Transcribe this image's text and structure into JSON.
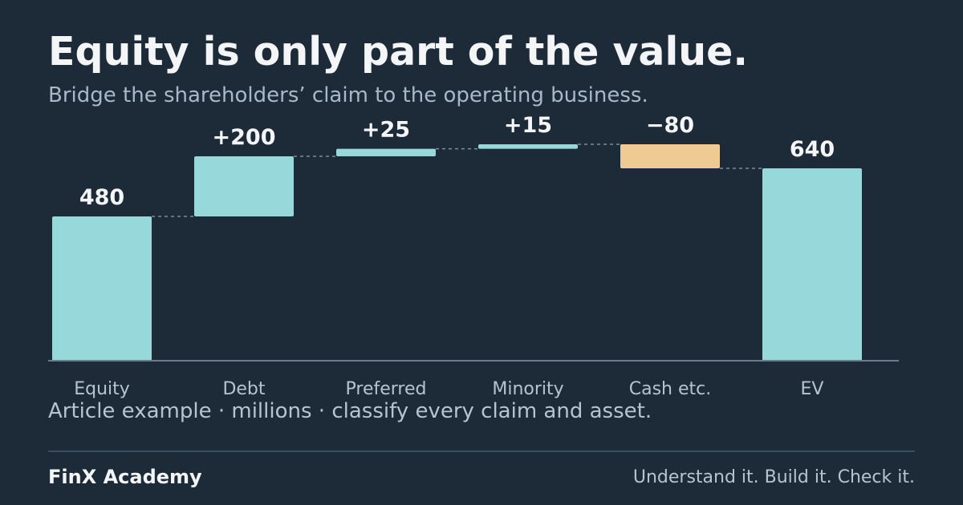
{
  "header": {
    "title": "Equity is only part of the value.",
    "subtitle": "Bridge the shareholders’ claim to the operating business."
  },
  "note": "Article example · millions · classify every claim and asset.",
  "footer": {
    "brand": "FinX Academy",
    "tagline": "Understand it. Build it. Check it."
  },
  "colors": {
    "background": "#1d2b38",
    "bar_total": "#97d8db",
    "bar_increase": "#97d8db",
    "bar_decrease": "#efcb93",
    "connector": "#7d8d9c",
    "baseline": "#6d7c8a"
  },
  "chart_data": {
    "type": "bar",
    "subtype": "waterfall",
    "categories": [
      "Equity",
      "Debt",
      "Preferred",
      "Minority",
      "Cash etc.",
      "EV"
    ],
    "values": [
      480,
      200,
      25,
      15,
      -80,
      640
    ],
    "kinds": [
      "total",
      "delta",
      "delta",
      "delta",
      "delta",
      "total"
    ],
    "data_labels": [
      "480",
      "+200",
      "+25",
      "+15",
      "−80",
      "640"
    ],
    "ylim": [
      0,
      720
    ],
    "grid": false,
    "legend": "none"
  }
}
